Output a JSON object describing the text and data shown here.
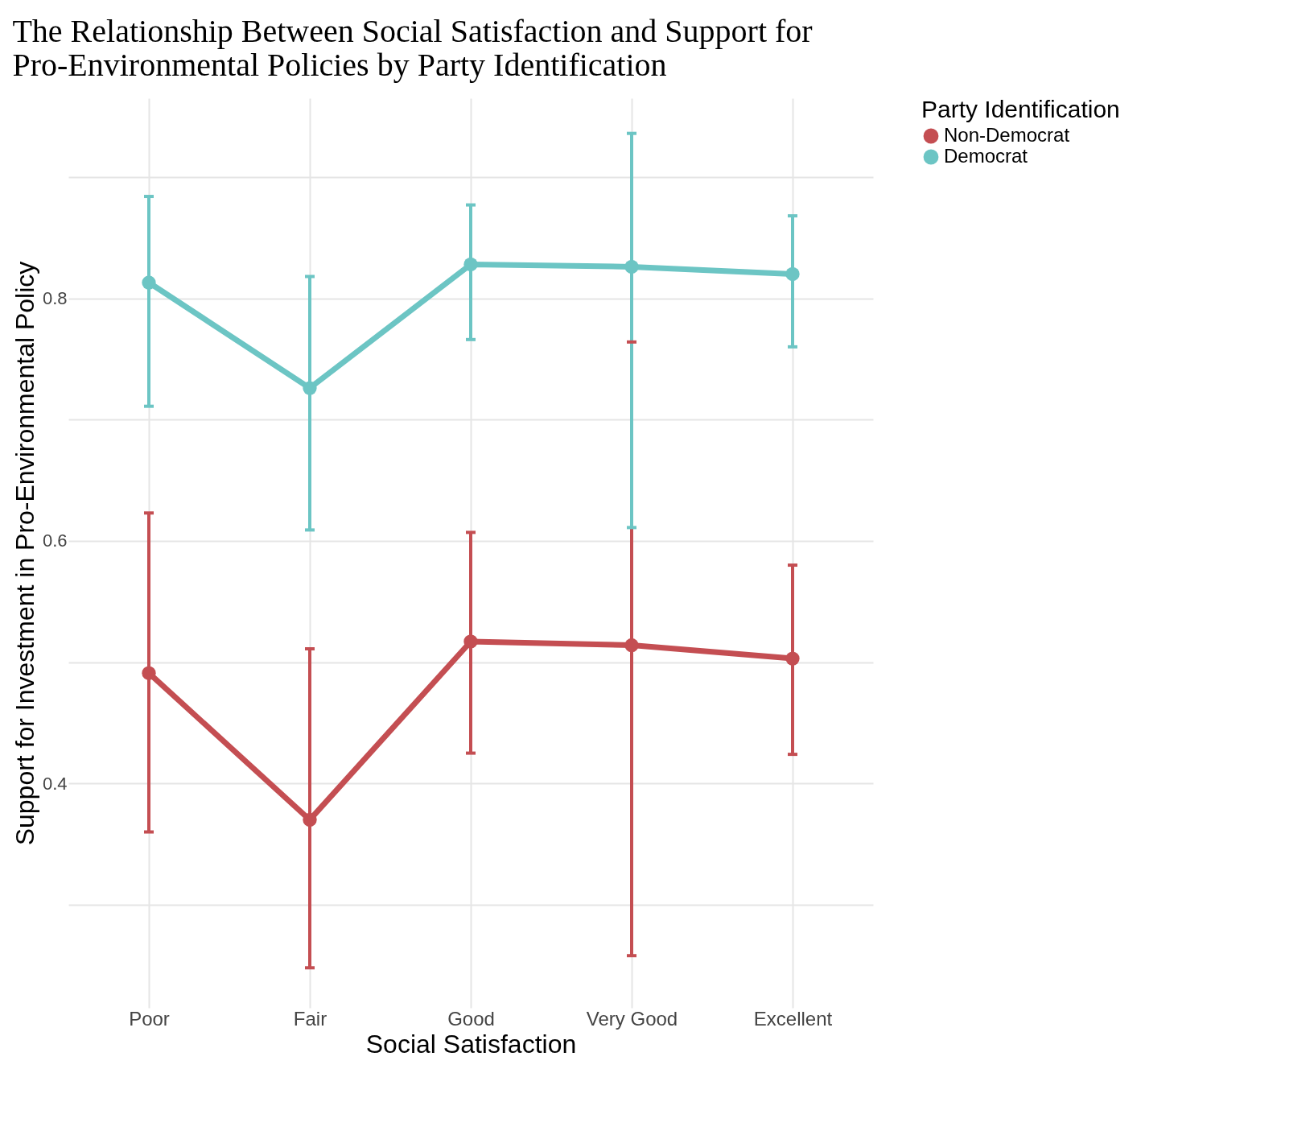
{
  "chart_data": {
    "type": "line",
    "title": "The Relationship Between Social Satisfaction and Support for Pro-Environmental Policies by Party Identification",
    "xlabel": "Social Satisfaction",
    "ylabel": "Support for Investment in Pro-Environmental Policy",
    "legend_title": "Party Identification",
    "categories": [
      "Poor",
      "Fair",
      "Good",
      "Very Good",
      "Excellent"
    ],
    "series": [
      {
        "name": "Non-Democrat",
        "color": "#c44e52",
        "values": [
          0.491,
          0.37,
          0.517,
          0.514,
          0.503
        ],
        "errors": [
          [
            0.36,
            0.623
          ],
          [
            0.248,
            0.511
          ],
          [
            0.425,
            0.607
          ],
          [
            0.258,
            0.764
          ],
          [
            0.424,
            0.58
          ]
        ]
      },
      {
        "name": "Democrat",
        "color": "#6cc5c4",
        "values": [
          0.813,
          0.726,
          0.828,
          0.826,
          0.82
        ],
        "errors": [
          [
            0.711,
            0.884
          ],
          [
            0.609,
            0.818
          ],
          [
            0.766,
            0.877
          ],
          [
            0.611,
            0.936
          ],
          [
            0.76,
            0.868
          ]
        ]
      }
    ],
    "ylim": [
      0.215,
      0.965
    ],
    "yticks": [
      {
        "value": 0.3,
        "label": null
      },
      0.4,
      {
        "value": 0.5,
        "label": null
      },
      0.6,
      {
        "value": 0.7,
        "label": null
      },
      0.8,
      {
        "value": 0.9,
        "label": null
      }
    ],
    "grid": true,
    "legend": "right",
    "marker": "circle",
    "line_style": "solid"
  }
}
